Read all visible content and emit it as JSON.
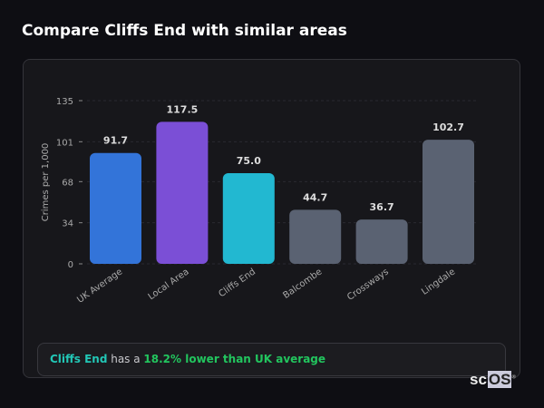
{
  "title": "Compare Cliffs End with similar areas",
  "chart_data": {
    "type": "bar",
    "categories": [
      "UK Average",
      "Local Area",
      "Cliffs End",
      "Balcombe",
      "Crossways",
      "Lingdale"
    ],
    "values": [
      91.7,
      117.5,
      75.0,
      44.7,
      36.7,
      102.7
    ],
    "labels": [
      "91.7",
      "117.5",
      "75.0",
      "44.7",
      "36.7",
      "102.7"
    ],
    "colors": [
      "#3374d9",
      "#7b4fd6",
      "#22b8d1",
      "#5a6272",
      "#5a6272",
      "#5a6272"
    ],
    "ylabel": "Crimes per 1,000",
    "yticks": [
      0,
      34,
      68,
      101,
      135
    ],
    "ylim": [
      0,
      135
    ],
    "grid": true
  },
  "summary": {
    "area": "Cliffs End",
    "middle": " has a ",
    "highlight": "18.2% lower than UK average"
  },
  "logo": {
    "prefix": "sc",
    "boxed": "OS",
    "mark": "®"
  }
}
